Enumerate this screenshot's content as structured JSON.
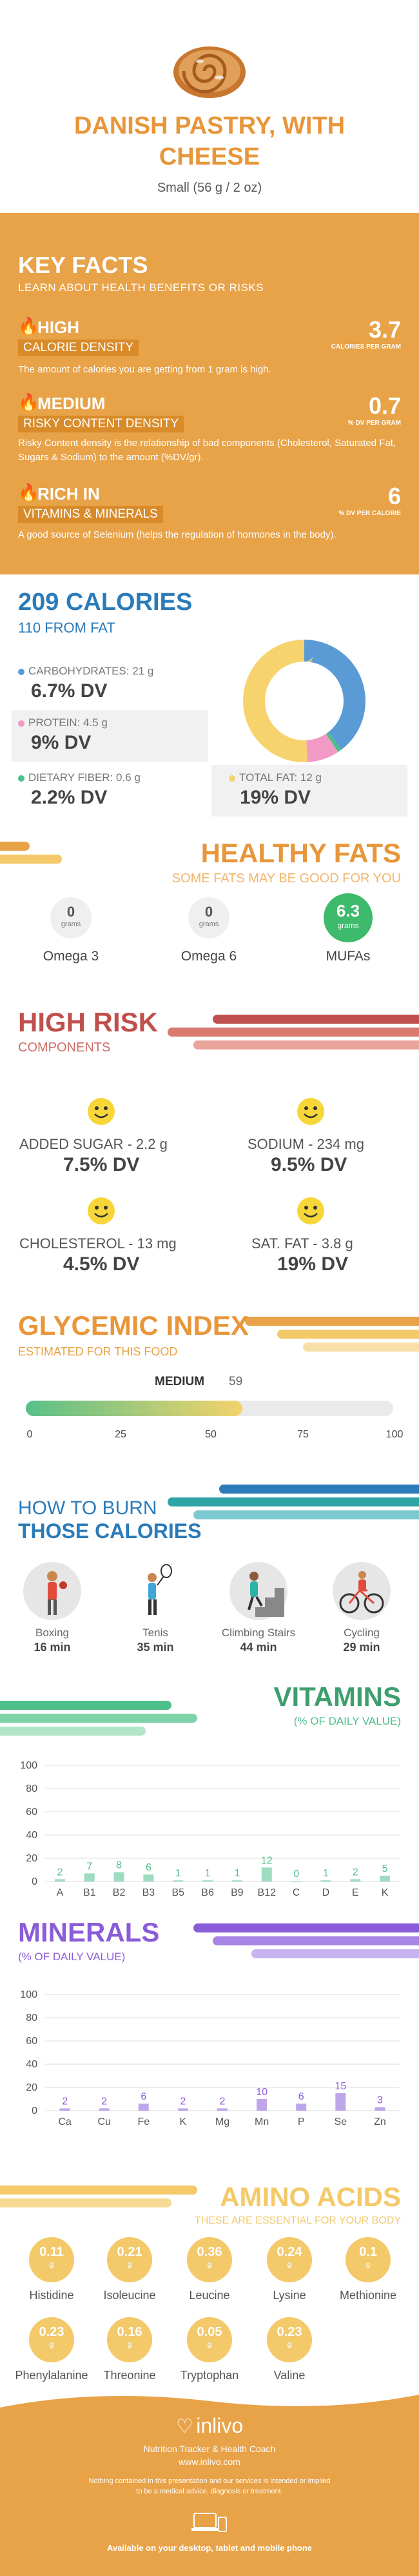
{
  "header": {
    "title_line1": "DANISH PASTRY, WITH",
    "title_line2": "CHEESE",
    "serving": "Small (56 g / 2 oz)"
  },
  "key_facts": {
    "title": "KEY FACTS",
    "subtitle": "LEARN ABOUT HEALTH BENEFITS OR RISKS",
    "items": [
      {
        "level": "HIGH",
        "label": "CALORIE DENSITY",
        "value": "3.7",
        "unit": "CALORIES PER GRAM",
        "desc": "The amount of calories you are getting from 1 gram is high."
      },
      {
        "level": "MEDIUM",
        "label": "RISKY CONTENT DENSITY",
        "value": "0.7",
        "unit": "% DV PER GRAM",
        "desc": "Risky Content density is the relationship of bad components (Cholesterol, Saturated Fat, Sugars & Sodium) to the amount (%DV/gr)."
      },
      {
        "level": "RICH IN",
        "label": "VITAMINS & MINERALS",
        "value": "6",
        "unit": "% DV PER CALORIE",
        "desc": "A good source of Selenium (helps the regulation of hormones in the body)."
      }
    ]
  },
  "calories": {
    "title": "209 CALORIES",
    "from_fat": "110 FROM FAT",
    "nutrients": [
      {
        "label": "CARBOHYDRATES: 21 g",
        "dv": "6.7% DV",
        "color": "#5B9BD5"
      },
      {
        "label": "PROTEIN: 4.5 g",
        "dv": "9% DV",
        "color": "#F29AC6"
      },
      {
        "label": "DIETARY FIBER: 0.6 g",
        "dv": "2.2% DV",
        "color": "#4DBF8A"
      },
      {
        "label": "TOTAL FAT: 12 g",
        "dv": "19% DV",
        "color": "#F7D36E"
      }
    ],
    "donut": [
      {
        "name": "carbs",
        "value": 84,
        "color": "#5B9BD5"
      },
      {
        "name": "fiber",
        "value": 2.4,
        "color": "#4DBF8A"
      },
      {
        "name": "protein",
        "value": 18,
        "color": "#F29AC6"
      },
      {
        "name": "fat",
        "value": 108,
        "color": "#F7D36E"
      }
    ]
  },
  "healthy_fats": {
    "title": "HEALTHY FATS",
    "subtitle": "SOME FATS MAY BE GOOD FOR YOU",
    "items": [
      {
        "value": "0",
        "unit": "grams",
        "name": "Omega 3"
      },
      {
        "value": "0",
        "unit": "grams",
        "name": "Omega 6"
      },
      {
        "value": "6.3",
        "unit": "grams",
        "name": "MUFAs"
      }
    ]
  },
  "high_risk": {
    "title": "HIGH RISK",
    "subtitle": "COMPONENTS",
    "items": [
      {
        "label": "ADDED SUGAR - 2.2 g",
        "dv": "7.5% DV"
      },
      {
        "label": "SODIUM - 234 mg",
        "dv": "9.5% DV"
      },
      {
        "label": "CHOLESTEROL - 13 mg",
        "dv": "4.5% DV"
      },
      {
        "label": "SAT. FAT - 3.8 g",
        "dv": "19% DV"
      }
    ]
  },
  "glycemic": {
    "title": "GLYCEMIC INDEX",
    "subtitle": "ESTIMATED FOR THIS FOOD",
    "level": "MEDIUM",
    "value": 59,
    "value_text": "59",
    "ticks": [
      "0",
      "25",
      "50",
      "75",
      "100"
    ]
  },
  "burn": {
    "title1": "HOW TO BURN",
    "title2": "THOSE CALORIES",
    "activities": [
      {
        "name": "Boxing",
        "time": "16 min",
        "icon": "boxing-icon"
      },
      {
        "name": "Tenis",
        "time": "35 min",
        "icon": "tennis-icon"
      },
      {
        "name": "Climbing Stairs",
        "time": "44 min",
        "icon": "stairs-icon"
      },
      {
        "name": "Cycling",
        "time": "29 min",
        "icon": "cycling-icon"
      }
    ]
  },
  "vitamins": {
    "title": "VITAMINS",
    "subtitle": "(% OF DAILY VALUE)",
    "chart_data": {
      "type": "bar",
      "categories": [
        "A",
        "B1",
        "B2",
        "B3",
        "B5",
        "B6",
        "B9",
        "B12",
        "C",
        "D",
        "E",
        "K"
      ],
      "values": [
        2,
        7,
        8,
        6,
        1,
        1,
        1,
        12,
        0,
        1,
        2,
        5
      ],
      "ylim": [
        0,
        100
      ],
      "yticks": [
        "0",
        "20",
        "40",
        "60",
        "80",
        "100"
      ],
      "color": "#4DBF8A"
    }
  },
  "minerals": {
    "title": "MINERALS",
    "subtitle": "(% OF DAILY VALUE)",
    "chart_data": {
      "type": "bar",
      "categories": [
        "Ca",
        "Cu",
        "Fe",
        "K",
        "Mg",
        "Mn",
        "P",
        "Se",
        "Zn"
      ],
      "values": [
        2,
        2,
        6,
        2,
        2,
        10,
        6,
        15,
        3
      ],
      "ylim": [
        0,
        100
      ],
      "yticks": [
        "0",
        "20",
        "40",
        "60",
        "80",
        "100"
      ],
      "color": "#8A5CD8"
    }
  },
  "amino": {
    "title": "AMINO ACIDS",
    "subtitle": "THESE ARE ESSENTIAL FOR YOUR BODY",
    "items": [
      {
        "value": "0.11",
        "unit": "g",
        "name": "Histidine"
      },
      {
        "value": "0.21",
        "unit": "g",
        "name": "Isoleucine"
      },
      {
        "value": "0.36",
        "unit": "g",
        "name": "Leucine"
      },
      {
        "value": "0.24",
        "unit": "g",
        "name": "Lysine"
      },
      {
        "value": "0.1",
        "unit": "g",
        "name": "Methionine"
      },
      {
        "value": "0.23",
        "unit": "g",
        "name": "Phenylalanine"
      },
      {
        "value": "0.16",
        "unit": "g",
        "name": "Threonine"
      },
      {
        "value": "0.05",
        "unit": "g",
        "name": "Tryptophan"
      },
      {
        "value": "0.23",
        "unit": "g",
        "name": "Valine"
      }
    ]
  },
  "footer": {
    "brand": "inlivo",
    "tagline": "Nutrition Tracker & Health Coach",
    "url": "www.inlivo.com",
    "disclaimer1": "Nothing contained in this presentation and our services is intended or implied",
    "disclaimer2": "to be a medical advice, diagnosis or treatment.",
    "available": "Available on your desktop, tablet and mobile phone"
  }
}
